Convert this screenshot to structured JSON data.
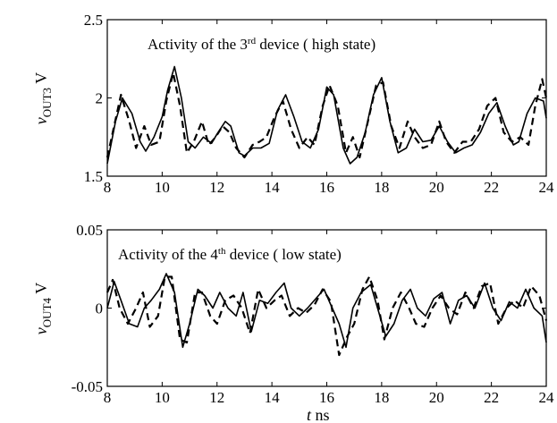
{
  "chart_data": [
    {
      "type": "line",
      "annotation": {
        "pre": "Activity  of the 3",
        "sup": "rd",
        "post": " device  ( high state)"
      },
      "ylabel": {
        "var": "v",
        "sub": "OUT3",
        "unit": "V"
      },
      "xlim": [
        8,
        24
      ],
      "ylim": [
        1.5,
        2.5
      ],
      "xticks": [
        "8",
        "10",
        "12",
        "14",
        "16",
        "18",
        "20",
        "22",
        "24"
      ],
      "yticks": [
        "1.5",
        "2",
        "2.5"
      ],
      "series": [
        {
          "style": "solid",
          "x": [
            8.0,
            8.3,
            8.55,
            8.9,
            9.2,
            9.4,
            9.7,
            10.0,
            10.2,
            10.45,
            10.7,
            10.95,
            11.2,
            11.5,
            11.8,
            12.0,
            12.3,
            12.5,
            12.8,
            13.0,
            13.3,
            13.6,
            13.9,
            14.2,
            14.5,
            14.8,
            15.1,
            15.4,
            15.7,
            16.0,
            16.25,
            16.6,
            16.85,
            17.1,
            17.4,
            17.7,
            18.0,
            18.3,
            18.6,
            18.9,
            19.2,
            19.5,
            19.8,
            20.1,
            20.4,
            20.7,
            21.0,
            21.3,
            21.6,
            21.9,
            22.2,
            22.5,
            22.8,
            23.0,
            23.3,
            23.6,
            23.9,
            24.0
          ],
          "y": [
            1.58,
            1.85,
            2.0,
            1.9,
            1.72,
            1.66,
            1.75,
            1.88,
            2.05,
            2.2,
            2.0,
            1.72,
            1.68,
            1.75,
            1.71,
            1.77,
            1.85,
            1.82,
            1.65,
            1.63,
            1.68,
            1.68,
            1.71,
            1.92,
            2.02,
            1.88,
            1.72,
            1.68,
            1.8,
            2.07,
            2.02,
            1.68,
            1.58,
            1.62,
            1.78,
            2.02,
            2.13,
            1.85,
            1.65,
            1.68,
            1.8,
            1.72,
            1.73,
            1.82,
            1.72,
            1.65,
            1.68,
            1.7,
            1.78,
            1.9,
            1.97,
            1.82,
            1.7,
            1.72,
            1.9,
            2.0,
            1.98,
            1.87
          ]
        },
        {
          "style": "dashed",
          "x": [
            8.0,
            8.2,
            8.5,
            8.8,
            9.05,
            9.35,
            9.6,
            9.9,
            10.15,
            10.4,
            10.65,
            10.9,
            11.15,
            11.45,
            11.7,
            11.95,
            12.2,
            12.45,
            12.7,
            13.0,
            13.3,
            13.55,
            13.8,
            14.1,
            14.4,
            14.7,
            15.0,
            15.3,
            15.55,
            15.85,
            16.1,
            16.4,
            16.7,
            16.95,
            17.2,
            17.5,
            17.8,
            18.05,
            18.35,
            18.65,
            18.95,
            19.2,
            19.5,
            19.8,
            20.1,
            20.35,
            20.65,
            20.95,
            21.25,
            21.55,
            21.85,
            22.15,
            22.45,
            22.75,
            23.05,
            23.35,
            23.6,
            23.85,
            24.0
          ],
          "y": [
            1.62,
            1.78,
            2.02,
            1.85,
            1.68,
            1.82,
            1.7,
            1.72,
            1.98,
            2.16,
            1.95,
            1.65,
            1.72,
            1.85,
            1.7,
            1.75,
            1.82,
            1.78,
            1.68,
            1.62,
            1.7,
            1.72,
            1.75,
            1.88,
            1.98,
            1.8,
            1.68,
            1.75,
            1.7,
            1.95,
            2.08,
            1.95,
            1.65,
            1.75,
            1.62,
            1.85,
            2.08,
            2.1,
            1.82,
            1.68,
            1.85,
            1.75,
            1.68,
            1.7,
            1.85,
            1.72,
            1.65,
            1.72,
            1.72,
            1.8,
            1.95,
            2.0,
            1.78,
            1.72,
            1.75,
            1.7,
            1.95,
            2.12,
            2.0
          ]
        }
      ]
    },
    {
      "type": "line",
      "annotation": {
        "pre": "Activity of the 4",
        "sup": "th",
        "post": " device  ( low state)"
      },
      "ylabel": {
        "var": "v",
        "sub": "OUT4",
        "unit": "V"
      },
      "xlabel": {
        "var": "t",
        "unit": "ns"
      },
      "xlim": [
        8,
        24
      ],
      "ylim": [
        -0.05,
        0.05
      ],
      "xticks": [
        "8",
        "10",
        "12",
        "14",
        "16",
        "18",
        "20",
        "22",
        "24"
      ],
      "yticks": [
        "-0.05",
        "0",
        "0.05"
      ],
      "series": [
        {
          "style": "solid",
          "x": [
            8.0,
            8.25,
            8.5,
            8.8,
            9.1,
            9.35,
            9.6,
            9.9,
            10.15,
            10.45,
            10.75,
            11.0,
            11.3,
            11.55,
            11.85,
            12.1,
            12.4,
            12.7,
            12.95,
            13.25,
            13.55,
            13.85,
            14.15,
            14.45,
            14.7,
            15.0,
            15.3,
            15.6,
            15.9,
            16.2,
            16.45,
            16.7,
            16.95,
            17.25,
            17.6,
            17.85,
            18.15,
            18.45,
            18.75,
            19.05,
            19.3,
            19.6,
            19.9,
            20.2,
            20.5,
            20.8,
            21.1,
            21.4,
            21.75,
            22.05,
            22.35,
            22.65,
            22.95,
            23.25,
            23.55,
            23.85,
            24.0
          ],
          "y": [
            0.0,
            0.017,
            0.005,
            -0.01,
            -0.012,
            0.0,
            0.005,
            0.012,
            0.022,
            0.01,
            -0.025,
            -0.01,
            0.012,
            0.008,
            0.0,
            0.01,
            0.0,
            -0.005,
            0.01,
            -0.015,
            0.005,
            0.003,
            0.01,
            0.016,
            0.0,
            -0.005,
            0.0,
            0.006,
            0.012,
            0.0,
            -0.01,
            -0.025,
            0.0,
            0.01,
            0.015,
            0.0,
            -0.018,
            -0.01,
            0.005,
            0.012,
            0.0,
            -0.005,
            0.006,
            0.01,
            -0.01,
            0.005,
            0.008,
            0.0,
            0.016,
            0.0,
            -0.008,
            0.004,
            0.0,
            0.012,
            0.0,
            -0.005,
            -0.022
          ]
        },
        {
          "style": "dashed",
          "x": [
            8.0,
            8.2,
            8.45,
            8.75,
            9.05,
            9.3,
            9.55,
            9.85,
            10.1,
            10.35,
            10.65,
            10.9,
            11.2,
            11.45,
            11.75,
            12.0,
            12.3,
            12.6,
            12.9,
            13.2,
            13.5,
            13.8,
            14.1,
            14.35,
            14.65,
            14.95,
            15.25,
            15.55,
            15.85,
            16.15,
            16.45,
            16.75,
            17.0,
            17.3,
            17.55,
            17.85,
            18.1,
            18.4,
            18.7,
            19.0,
            19.25,
            19.55,
            19.85,
            20.15,
            20.45,
            20.75,
            21.05,
            21.35,
            21.65,
            21.95,
            22.25,
            22.55,
            22.85,
            23.15,
            23.45,
            23.75,
            24.0
          ],
          "y": [
            0.01,
            0.018,
            0.0,
            -0.01,
            0.0,
            0.01,
            -0.012,
            -0.005,
            0.02,
            0.02,
            -0.02,
            -0.022,
            0.01,
            0.01,
            -0.005,
            -0.01,
            0.005,
            0.008,
            0.0,
            -0.016,
            0.012,
            0.0,
            0.005,
            0.008,
            -0.005,
            0.0,
            -0.003,
            0.002,
            0.012,
            0.004,
            -0.03,
            -0.018,
            -0.01,
            0.012,
            0.02,
            0.005,
            -0.02,
            0.0,
            0.01,
            0.0,
            -0.01,
            -0.012,
            0.0,
            0.008,
            0.0,
            -0.004,
            0.01,
            0.0,
            0.014,
            0.016,
            -0.01,
            0.0,
            0.005,
            0.0,
            0.014,
            0.008,
            -0.008
          ]
        }
      ]
    }
  ]
}
